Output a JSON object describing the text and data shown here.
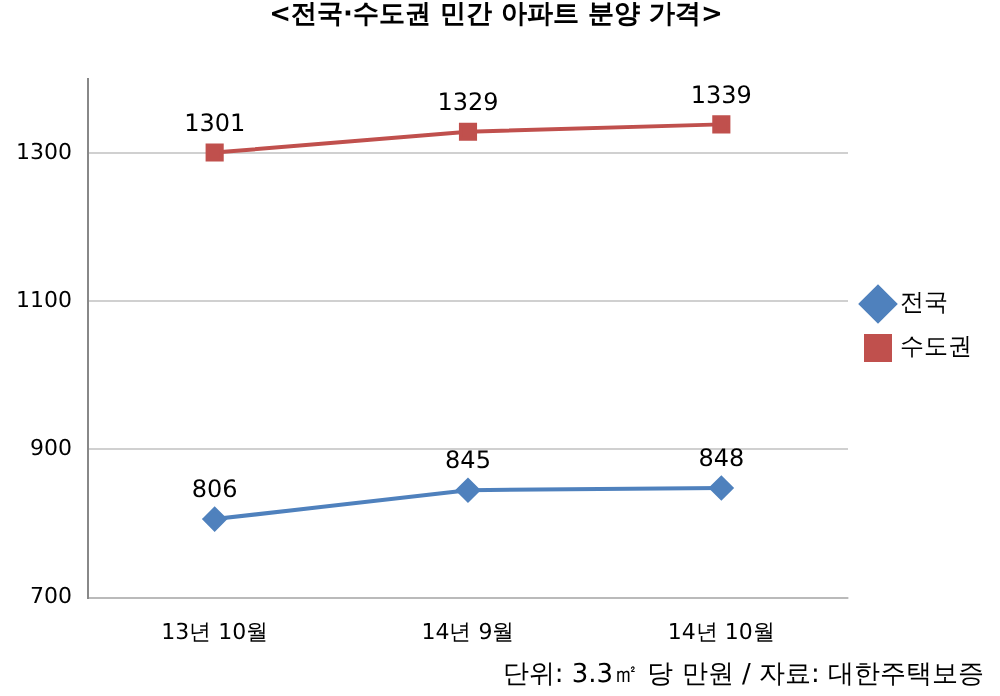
{
  "chart_data": {
    "type": "line",
    "title": "<전국·수도권 민간 아파트 분양 가격>",
    "categories": [
      "13년 10월",
      "14년 9월",
      "14년 10월"
    ],
    "series": [
      {
        "name": "전국",
        "color": "#4f81bd",
        "values": [
          806,
          845,
          848
        ],
        "marker": "diamond"
      },
      {
        "name": "수도권",
        "color": "#c0504d",
        "values": [
          1301,
          1329,
          1339
        ],
        "marker": "square"
      }
    ],
    "ylim": [
      700,
      1400
    ],
    "yticks": [
      700,
      900,
      1100,
      1300
    ],
    "grid": "y",
    "legend": "right",
    "data_labels": true,
    "annotations": [
      "단위: 3.3㎡ 당 만원 / 자료: 대한주택보증"
    ]
  }
}
